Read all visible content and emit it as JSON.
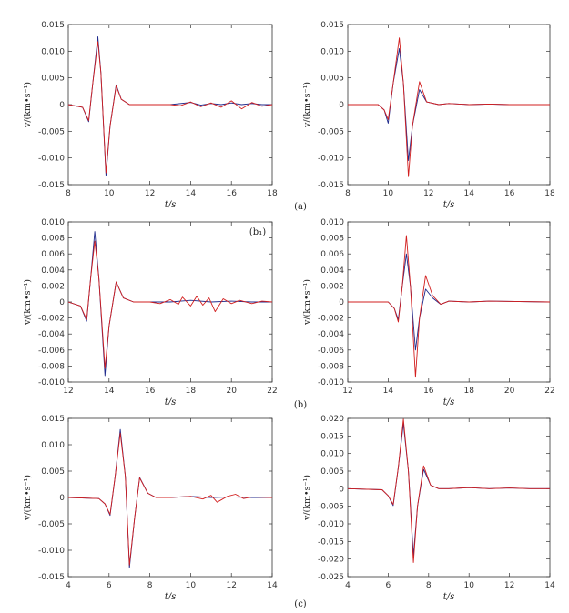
{
  "figure": {
    "captions": [
      "(a)",
      "(b)",
      "(c)"
    ],
    "panel_note": "(b₁)"
  },
  "colors": {
    "series_a": "#1f2a8c",
    "series_b": "#d21f1f",
    "axis": "#333333"
  },
  "chart_data": [
    {
      "type": "line",
      "xlabel": "t/s",
      "ylabel": "v/(km•s⁻¹)",
      "xlim": [
        8,
        18
      ],
      "ylim": [
        -0.015,
        0.015
      ],
      "xticks": [
        "8",
        "10",
        "12",
        "14",
        "16",
        "18"
      ],
      "yticks": [
        "0.015",
        "0.010",
        "0.005",
        "0",
        "-0.005",
        "-0.010",
        "-0.015"
      ],
      "grid": false,
      "series": [
        {
          "color": "#1f2a8c",
          "points": [
            [
              8,
              0
            ],
            [
              8.7,
              -0.0005
            ],
            [
              9.0,
              -0.0032
            ],
            [
              9.2,
              0.004
            ],
            [
              9.45,
              0.0127
            ],
            [
              9.6,
              0.006
            ],
            [
              9.85,
              -0.0133
            ],
            [
              10.05,
              -0.004
            ],
            [
              10.35,
              0.0037
            ],
            [
              10.6,
              0.001
            ],
            [
              11,
              0
            ],
            [
              13,
              0
            ],
            [
              14,
              0.0004
            ],
            [
              14.5,
              -0.0001
            ],
            [
              15,
              0.0002
            ],
            [
              15.5,
              0
            ],
            [
              16,
              0.0003
            ],
            [
              16.5,
              0
            ],
            [
              17,
              0.0002
            ],
            [
              17.5,
              0
            ],
            [
              18,
              0
            ]
          ]
        },
        {
          "color": "#d21f1f",
          "points": [
            [
              8,
              0
            ],
            [
              8.7,
              -0.0005
            ],
            [
              9.0,
              -0.003
            ],
            [
              9.2,
              0.004
            ],
            [
              9.45,
              0.0118
            ],
            [
              9.6,
              0.006
            ],
            [
              9.85,
              -0.0128
            ],
            [
              10.05,
              -0.004
            ],
            [
              10.35,
              0.0035
            ],
            [
              10.6,
              0.001
            ],
            [
              11,
              0
            ],
            [
              13,
              0
            ],
            [
              13.5,
              -0.0002
            ],
            [
              14,
              0.0005
            ],
            [
              14.5,
              -0.0004
            ],
            [
              15,
              0.0003
            ],
            [
              15.5,
              -0.0005
            ],
            [
              16,
              0.0007
            ],
            [
              16.5,
              -0.0008
            ],
            [
              17,
              0.0004
            ],
            [
              17.5,
              -0.0003
            ],
            [
              18,
              0
            ]
          ]
        }
      ]
    },
    {
      "type": "line",
      "xlabel": "t/s",
      "ylabel": "v/(km•s⁻¹)",
      "xlim": [
        8,
        18
      ],
      "ylim": [
        -0.015,
        0.015
      ],
      "xticks": [
        "8",
        "10",
        "12",
        "14",
        "16",
        "18"
      ],
      "yticks": [
        "0.015",
        "0.010",
        "0.005",
        "0",
        "-0.005",
        "-0.010",
        "-0.015"
      ],
      "grid": false,
      "series": [
        {
          "color": "#1f2a8c",
          "points": [
            [
              8,
              0
            ],
            [
              9.5,
              0
            ],
            [
              9.8,
              -0.001
            ],
            [
              10.0,
              -0.0035
            ],
            [
              10.25,
              0.004
            ],
            [
              10.55,
              0.0105
            ],
            [
              10.75,
              0.004
            ],
            [
              11.0,
              -0.0105
            ],
            [
              11.2,
              -0.004
            ],
            [
              11.55,
              0.0028
            ],
            [
              11.9,
              0.0005
            ],
            [
              12.5,
              0
            ],
            [
              13,
              0.0002
            ],
            [
              14,
              0
            ],
            [
              15,
              0.0001
            ],
            [
              16,
              0
            ],
            [
              18,
              0
            ]
          ]
        },
        {
          "color": "#d21f1f",
          "points": [
            [
              8,
              0
            ],
            [
              9.5,
              0
            ],
            [
              9.8,
              -0.001
            ],
            [
              10.0,
              -0.0028
            ],
            [
              10.25,
              0.004
            ],
            [
              10.55,
              0.0125
            ],
            [
              10.75,
              0.004
            ],
            [
              11.0,
              -0.0135
            ],
            [
              11.2,
              -0.004
            ],
            [
              11.55,
              0.0043
            ],
            [
              11.9,
              0.0005
            ],
            [
              12.5,
              0
            ],
            [
              13,
              0.0002
            ],
            [
              14,
              0
            ],
            [
              15,
              0.0001
            ],
            [
              16,
              0
            ],
            [
              18,
              0
            ]
          ]
        }
      ]
    },
    {
      "type": "line",
      "xlabel": "t/s",
      "ylabel": "v/(km•s⁻¹)",
      "xlim": [
        12,
        22
      ],
      "ylim": [
        -0.01,
        0.01
      ],
      "xticks": [
        "12",
        "14",
        "16",
        "18",
        "20",
        "22"
      ],
      "yticks": [
        "0.010",
        "0.008",
        "0.006",
        "0.004",
        "0.002",
        "0",
        "-0.002",
        "-0.004",
        "-0.006",
        "-0.008",
        "-0.010"
      ],
      "grid": false,
      "series": [
        {
          "color": "#1f2a8c",
          "points": [
            [
              12,
              0
            ],
            [
              12.6,
              -0.0005
            ],
            [
              12.9,
              -0.0024
            ],
            [
              13.1,
              0.003
            ],
            [
              13.3,
              0.0088
            ],
            [
              13.5,
              0.003
            ],
            [
              13.8,
              -0.0092
            ],
            [
              14.0,
              -0.003
            ],
            [
              14.35,
              0.0025
            ],
            [
              14.7,
              0.0005
            ],
            [
              15.2,
              0
            ],
            [
              16,
              0
            ],
            [
              17,
              0
            ],
            [
              18,
              0.0002
            ],
            [
              19,
              0
            ],
            [
              20,
              0.0001
            ],
            [
              21,
              0
            ],
            [
              22,
              0
            ]
          ]
        },
        {
          "color": "#d21f1f",
          "points": [
            [
              12,
              0
            ],
            [
              12.6,
              -0.0005
            ],
            [
              12.9,
              -0.0022
            ],
            [
              13.1,
              0.003
            ],
            [
              13.3,
              0.0076
            ],
            [
              13.5,
              0.003
            ],
            [
              13.8,
              -0.0083
            ],
            [
              14.0,
              -0.003
            ],
            [
              14.35,
              0.0025
            ],
            [
              14.7,
              0.0005
            ],
            [
              15.2,
              0
            ],
            [
              16,
              0
            ],
            [
              16.5,
              -0.0002
            ],
            [
              17.0,
              0.0003
            ],
            [
              17.4,
              -0.0003
            ],
            [
              17.6,
              0.0006
            ],
            [
              18.0,
              -0.0005
            ],
            [
              18.3,
              0.0007
            ],
            [
              18.6,
              -0.0004
            ],
            [
              18.9,
              0.0005
            ],
            [
              19.2,
              -0.0012
            ],
            [
              19.6,
              0.0004
            ],
            [
              20.0,
              -0.0002
            ],
            [
              20.4,
              0.0002
            ],
            [
              21,
              -0.0002
            ],
            [
              21.5,
              0.0001
            ],
            [
              22,
              0
            ]
          ]
        }
      ]
    },
    {
      "type": "line",
      "xlabel": "t/s",
      "ylabel": "v/(km•s⁻¹)",
      "xlim": [
        12,
        22
      ],
      "ylim": [
        -0.01,
        0.01
      ],
      "xticks": [
        "12",
        "14",
        "16",
        "18",
        "20",
        "22"
      ],
      "yticks": [
        "0.010",
        "0.008",
        "0.006",
        "0.004",
        "0.002",
        "0",
        "-0.002",
        "-0.004",
        "-0.006",
        "-0.008",
        "-0.010"
      ],
      "grid": false,
      "series": [
        {
          "color": "#1f2a8c",
          "points": [
            [
              12,
              0
            ],
            [
              14.0,
              0
            ],
            [
              14.3,
              -0.0008
            ],
            [
              14.5,
              -0.0022
            ],
            [
              14.7,
              0.002
            ],
            [
              14.9,
              0.006
            ],
            [
              15.1,
              0.002
            ],
            [
              15.35,
              -0.006
            ],
            [
              15.55,
              -0.002
            ],
            [
              15.85,
              0.0016
            ],
            [
              16.2,
              0.0005
            ],
            [
              16.6,
              -0.0003
            ],
            [
              17,
              0.0001
            ],
            [
              18,
              0
            ],
            [
              19,
              0.0001
            ],
            [
              22,
              0
            ]
          ]
        },
        {
          "color": "#d21f1f",
          "points": [
            [
              12,
              0
            ],
            [
              14.0,
              0
            ],
            [
              14.3,
              -0.0008
            ],
            [
              14.5,
              -0.0025
            ],
            [
              14.7,
              0.002
            ],
            [
              14.9,
              0.0083
            ],
            [
              15.1,
              0.002
            ],
            [
              15.35,
              -0.0094
            ],
            [
              15.55,
              -0.002
            ],
            [
              15.85,
              0.0033
            ],
            [
              16.2,
              0.0008
            ],
            [
              16.6,
              -0.0003
            ],
            [
              17,
              0.0001
            ],
            [
              18,
              0
            ],
            [
              19,
              0.0001
            ],
            [
              22,
              0
            ]
          ]
        }
      ]
    },
    {
      "type": "line",
      "xlabel": "t/s",
      "ylabel": "v/(km•s⁻¹)",
      "xlim": [
        4,
        14
      ],
      "ylim": [
        -0.015,
        0.015
      ],
      "xticks": [
        "4",
        "6",
        "8",
        "10",
        "12",
        "14"
      ],
      "yticks": [
        "0.015",
        "0.010",
        "0.005",
        "0",
        "-0.005",
        "-0.010",
        "-0.015"
      ],
      "grid": false,
      "series": [
        {
          "color": "#1f2a8c",
          "points": [
            [
              4,
              0
            ],
            [
              5.5,
              -0.0002
            ],
            [
              5.8,
              -0.0012
            ],
            [
              6.05,
              -0.0034
            ],
            [
              6.3,
              0.004
            ],
            [
              6.55,
              0.0129
            ],
            [
              6.8,
              0.004
            ],
            [
              7.0,
              -0.0133
            ],
            [
              7.25,
              -0.004
            ],
            [
              7.5,
              0.0038
            ],
            [
              7.9,
              0.0008
            ],
            [
              8.3,
              0
            ],
            [
              9,
              0
            ],
            [
              10,
              0.0002
            ],
            [
              11,
              0
            ],
            [
              12,
              0.0001
            ],
            [
              13,
              0
            ],
            [
              14,
              0
            ]
          ]
        },
        {
          "color": "#d21f1f",
          "points": [
            [
              4,
              0
            ],
            [
              5.5,
              -0.0002
            ],
            [
              5.8,
              -0.0012
            ],
            [
              6.05,
              -0.0032
            ],
            [
              6.3,
              0.004
            ],
            [
              6.55,
              0.0122
            ],
            [
              6.8,
              0.004
            ],
            [
              7.0,
              -0.0128
            ],
            [
              7.25,
              -0.004
            ],
            [
              7.5,
              0.0037
            ],
            [
              7.9,
              0.0008
            ],
            [
              8.3,
              0
            ],
            [
              9,
              0
            ],
            [
              10,
              0.0002
            ],
            [
              10.6,
              -0.0003
            ],
            [
              11.0,
              0.0004
            ],
            [
              11.3,
              -0.0009
            ],
            [
              11.8,
              0.0002
            ],
            [
              12.2,
              0.0006
            ],
            [
              12.6,
              -0.0002
            ],
            [
              13,
              0.0001
            ],
            [
              14,
              0
            ]
          ]
        }
      ]
    },
    {
      "type": "line",
      "xlabel": "t/s",
      "ylabel": "v/(km•s⁻¹)",
      "xlim": [
        4,
        14
      ],
      "ylim": [
        -0.025,
        0.02
      ],
      "xticks": [
        "4",
        "6",
        "8",
        "10",
        "12",
        "14"
      ],
      "yticks": [
        "0.020",
        "0.015",
        "0.010",
        "0.005",
        "0",
        "-0.005",
        "-0.010",
        "-0.015",
        "-0.020",
        "-0.025"
      ],
      "grid": false,
      "series": [
        {
          "color": "#1f2a8c",
          "points": [
            [
              4,
              0
            ],
            [
              5.7,
              -0.0003
            ],
            [
              6.0,
              -0.002
            ],
            [
              6.25,
              -0.0048
            ],
            [
              6.5,
              0.006
            ],
            [
              6.75,
              0.0185
            ],
            [
              7.0,
              0.005
            ],
            [
              7.25,
              -0.019
            ],
            [
              7.45,
              -0.005
            ],
            [
              7.75,
              0.0055
            ],
            [
              8.1,
              0.001
            ],
            [
              8.5,
              0
            ],
            [
              9,
              0
            ],
            [
              10,
              0.0003
            ],
            [
              11,
              0
            ],
            [
              12,
              0.0002
            ],
            [
              13,
              0
            ],
            [
              14,
              0
            ]
          ]
        },
        {
          "color": "#d21f1f",
          "points": [
            [
              4,
              0
            ],
            [
              5.7,
              -0.0003
            ],
            [
              6.0,
              -0.002
            ],
            [
              6.25,
              -0.0045
            ],
            [
              6.5,
              0.006
            ],
            [
              6.75,
              0.0198
            ],
            [
              7.0,
              0.005
            ],
            [
              7.25,
              -0.021
            ],
            [
              7.45,
              -0.005
            ],
            [
              7.75,
              0.0065
            ],
            [
              8.1,
              0.001
            ],
            [
              8.5,
              0
            ],
            [
              9,
              0
            ],
            [
              10,
              0.0003
            ],
            [
              11,
              0
            ],
            [
              12,
              0.0002
            ],
            [
              13,
              0
            ],
            [
              14,
              0
            ]
          ]
        }
      ]
    }
  ]
}
